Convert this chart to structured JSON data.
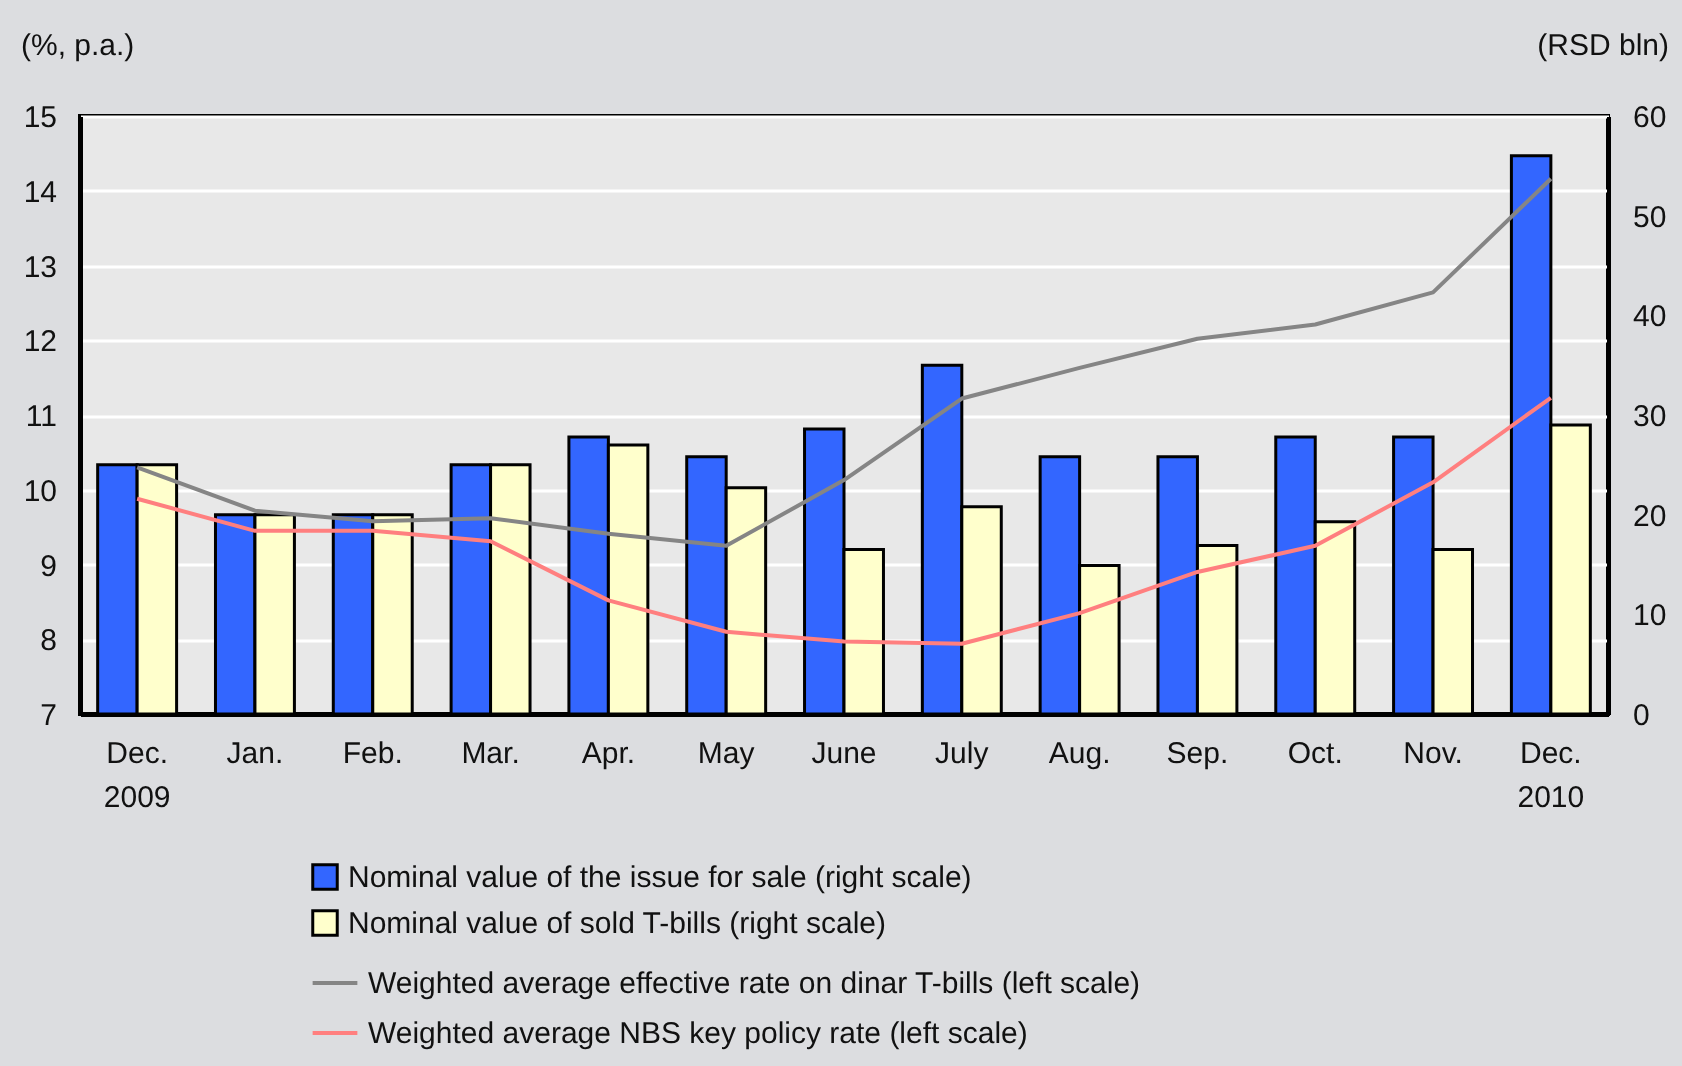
{
  "chart_data": {
    "type": "bar",
    "categories": [
      "Dec.\n2009",
      "Jan.",
      "Feb.",
      "Mar.",
      "Apr.",
      "May",
      "June",
      "July",
      "Aug.",
      "Sep.",
      "Oct.",
      "Nov.",
      "Dec.\n2010"
    ],
    "series": [
      {
        "name": "Nominal value of the issue for sale (right scale)",
        "color": "#3366ff",
        "axis": "y2",
        "values": [
          25,
          20,
          20,
          25,
          27.8,
          25.8,
          28.6,
          35,
          25.8,
          25.8,
          27.8,
          27.8,
          56
        ]
      },
      {
        "name": "Nominal value of sold T-bills (right scale)",
        "color": "#ffffcc",
        "axis": "y2",
        "values": [
          25,
          20,
          20,
          25,
          27,
          22.7,
          16.5,
          20.8,
          14.9,
          16.9,
          19.3,
          16.5,
          29
        ]
      },
      {
        "name": "Weighted average effective rate on dinar T-bills (left scale)",
        "color": "#858585",
        "type": "line",
        "values": [
          10.3,
          9.72,
          9.58,
          9.62,
          9.41,
          9.25,
          10.13,
          11.22,
          11.63,
          12.02,
          12.21,
          12.64,
          14.16
        ]
      },
      {
        "name": "Weighted average NBS key policy rate (left scale)",
        "color": "#ff7f7f",
        "type": "line",
        "values": [
          9.88,
          9.45,
          9.45,
          9.31,
          8.52,
          8.1,
          7.97,
          7.94,
          8.35,
          8.9,
          9.25,
          10.1,
          11.23
        ]
      }
    ],
    "ylabel": "(%, p.a.)",
    "y2label": "(RSD bln)",
    "ylim": [
      7,
      15
    ],
    "yticks": [
      7,
      8,
      9,
      10,
      11,
      12,
      13,
      14,
      15
    ],
    "y2lim": [
      0,
      60
    ],
    "y2ticks": [
      0,
      10,
      20,
      30,
      40,
      50,
      60
    ],
    "grid": "y",
    "legend": "bottom"
  }
}
